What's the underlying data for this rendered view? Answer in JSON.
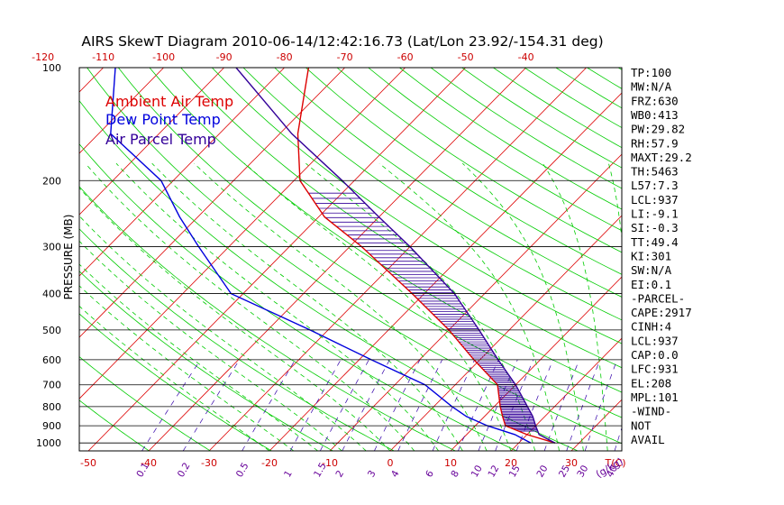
{
  "chart_data": {
    "type": "skewt",
    "title": "AIRS SkewT Diagram 2010-06-14/12:42:16.73 (Lat/Lon 23.92/-154.31 deg)",
    "ylabel": "PRESSURE (MB)",
    "pressure_ticks": [
      "100",
      "200",
      "300",
      "400",
      "500",
      "600",
      "700",
      "800",
      "900",
      "1000"
    ],
    "bottom_temp_ticks": [
      "-50",
      "-40",
      "-30",
      "-20",
      "-10",
      "0",
      "10",
      "20",
      "30"
    ],
    "top_temp_ticks": [
      "-120",
      "-110",
      "-100",
      "-90",
      "-80",
      "-70",
      "-60",
      "-50",
      "-40"
    ],
    "temp_unit_label": "T(C)",
    "mixing_ratio_ticks": [
      "0.1",
      "0.2",
      "0.5",
      "1",
      "1.5",
      "2",
      "3",
      "4",
      "6",
      "8",
      "10",
      "12",
      "15",
      "20",
      "25",
      "30",
      "40"
    ],
    "mixing_ratio_unit_label": "(g/kg)",
    "legend": [
      {
        "label": "Ambient Air Temp",
        "color": "#dd0000"
      },
      {
        "label": "Dew Point Temp",
        "color": "#0000dd"
      },
      {
        "label": "Air Parcel Temp",
        "color": "#330099"
      }
    ],
    "series": [
      {
        "name": "Ambient Air Temp",
        "color": "#dd0000",
        "points": [
          [
            1000,
            26
          ],
          [
            950,
            20
          ],
          [
            900,
            15
          ],
          [
            850,
            13
          ],
          [
            800,
            11
          ],
          [
            700,
            7
          ],
          [
            600,
            -1
          ],
          [
            500,
            -10
          ],
          [
            400,
            -22
          ],
          [
            300,
            -38
          ],
          [
            250,
            -49
          ],
          [
            200,
            -59
          ],
          [
            150,
            -67
          ],
          [
            100,
            -76
          ]
        ]
      },
      {
        "name": "Dew Point Temp",
        "color": "#0000dd",
        "points": [
          [
            1000,
            22
          ],
          [
            950,
            18
          ],
          [
            900,
            12
          ],
          [
            850,
            7
          ],
          [
            800,
            3
          ],
          [
            700,
            -5
          ],
          [
            600,
            -18
          ],
          [
            500,
            -33
          ],
          [
            400,
            -52
          ],
          [
            300,
            -65
          ],
          [
            250,
            -73
          ],
          [
            200,
            -82
          ],
          [
            150,
            -98
          ],
          [
            100,
            -108
          ]
        ]
      },
      {
        "name": "Air Parcel Temp",
        "color": "#330099",
        "points": [
          [
            1000,
            26
          ],
          [
            950,
            22
          ],
          [
            900,
            20
          ],
          [
            850,
            18
          ],
          [
            800,
            15.5
          ],
          [
            700,
            10
          ],
          [
            600,
            3
          ],
          [
            500,
            -5
          ],
          [
            400,
            -15
          ],
          [
            300,
            -30
          ],
          [
            250,
            -40
          ],
          [
            200,
            -52
          ],
          [
            150,
            -68
          ],
          [
            100,
            -88
          ]
        ]
      }
    ],
    "indices": [
      "TP:100",
      "MW:N/A",
      "FRZ:630",
      "WB0:413",
      "PW:29.82",
      "RH:57.9",
      "MAXT:29.2",
      "TH:5463",
      "L57:7.3",
      "LCL:937",
      "LI:-9.1",
      "SI:-0.3",
      "TT:49.4",
      "KI:301",
      "SW:N/A",
      "EI:0.1",
      "-PARCEL-",
      "CAPE:2917",
      "CINH:4",
      "LCL:937",
      "CAP:0.0",
      "LFC:931",
      "EL:208",
      "MPL:101",
      "-WIND-",
      "NOT",
      "AVAIL"
    ],
    "colors": {
      "isotherm": "#dd0000",
      "dry_adiabat": "#00cc00",
      "moist_adiabat": "#00cc00",
      "mixing_ratio": "#3300aa",
      "axis_tick": "#cc0000",
      "mr_label": "#660099",
      "cape_fill": "#330099",
      "frame": "#000000"
    }
  }
}
